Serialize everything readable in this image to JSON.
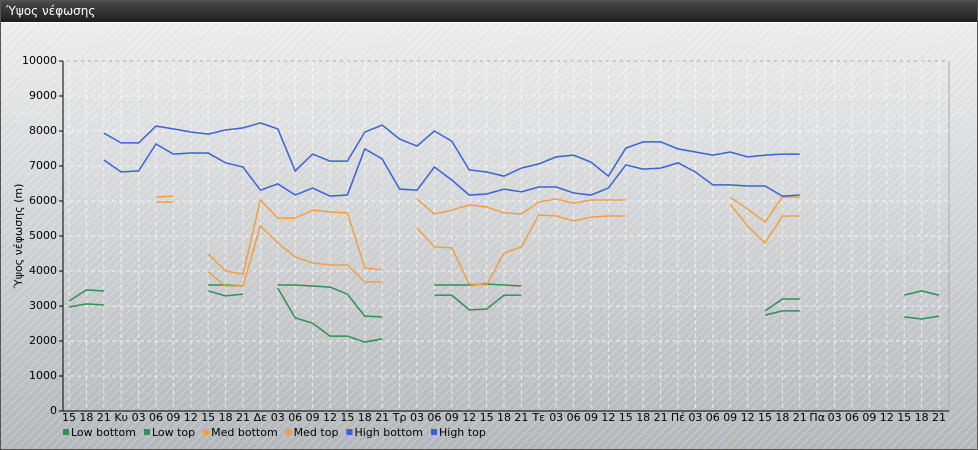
{
  "chart_data": {
    "type": "line",
    "title": "Ύψος νέφωσης",
    "y_label": "Ύψος νέφωσης (m)",
    "categories": [
      "15",
      "18",
      "21",
      "Κυ",
      "03",
      "06",
      "09",
      "12",
      "15",
      "18",
      "21",
      "Δε",
      "03",
      "06",
      "09",
      "12",
      "15",
      "18",
      "21",
      "Τρ",
      "03",
      "06",
      "09",
      "12",
      "15",
      "18",
      "21",
      "Τε",
      "03",
      "06",
      "09",
      "12",
      "15",
      "18",
      "21",
      "Πέ",
      "03",
      "06",
      "09",
      "12",
      "15",
      "18",
      "21",
      "Πα",
      "03",
      "06",
      "09",
      "12",
      "15",
      "18",
      "21"
    ],
    "ylim": [
      0,
      10000
    ],
    "yticks": [
      0,
      1000,
      2000,
      3000,
      4000,
      5000,
      6000,
      7000,
      8000,
      9000,
      10000
    ],
    "grid": true,
    "series": [
      {
        "name": "Low bottom",
        "color": "#2f8f55",
        "values": [
          2970,
          3060,
          3030,
          null,
          null,
          null,
          null,
          null,
          3430,
          3290,
          3340,
          null,
          3510,
          2660,
          2510,
          2140,
          2140,
          1970,
          2060,
          null,
          null,
          3310,
          3310,
          2890,
          2910,
          3310,
          3310,
          null,
          null,
          null,
          null,
          null,
          null,
          null,
          null,
          null,
          null,
          null,
          null,
          null,
          2740,
          2860,
          2860,
          null,
          null,
          null,
          null,
          null,
          2690,
          2630,
          2710
        ]
      },
      {
        "name": "Low top",
        "color": "#2f8f55",
        "values": [
          3140,
          3460,
          3430,
          null,
          null,
          null,
          null,
          null,
          3600,
          3600,
          3570,
          null,
          3600,
          3600,
          3570,
          3540,
          3340,
          2710,
          2690,
          null,
          null,
          3600,
          3600,
          3600,
          3630,
          3600,
          3570,
          null,
          null,
          null,
          null,
          null,
          null,
          null,
          null,
          null,
          null,
          null,
          null,
          null,
          2860,
          3200,
          3200,
          null,
          null,
          null,
          null,
          null,
          3310,
          3430,
          3310
        ]
      },
      {
        "name": "Med bottom",
        "color": "#f0a040",
        "values": [
          null,
          null,
          null,
          null,
          null,
          5970,
          5970,
          null,
          3970,
          3570,
          3570,
          5290,
          4800,
          4400,
          4230,
          4170,
          4170,
          3690,
          3690,
          null,
          5230,
          4690,
          4660,
          3630,
          3600,
          4510,
          4690,
          5600,
          5570,
          5430,
          5540,
          5570,
          5570,
          null,
          null,
          null,
          null,
          null,
          5910,
          5290,
          4800,
          5570,
          5570,
          null,
          null,
          null,
          null,
          null,
          null,
          null,
          null
        ]
      },
      {
        "name": "Med top",
        "color": "#f0a040",
        "values": [
          null,
          null,
          null,
          null,
          null,
          6110,
          6140,
          null,
          4490,
          4000,
          3910,
          6030,
          5510,
          5510,
          5740,
          5690,
          5660,
          4090,
          4030,
          null,
          6060,
          5630,
          5740,
          5890,
          5830,
          5660,
          5630,
          5970,
          6060,
          5940,
          6030,
          6030,
          6030,
          null,
          null,
          null,
          null,
          null,
          6110,
          5770,
          5400,
          6110,
          6110,
          null,
          null,
          null,
          null,
          null,
          null,
          null,
          null
        ]
      },
      {
        "name": "High bottom",
        "color": "#3a62d8",
        "values": [
          null,
          null,
          7170,
          6830,
          6860,
          7630,
          7340,
          7370,
          7370,
          7090,
          6970,
          6310,
          6490,
          6170,
          6370,
          6140,
          6170,
          7490,
          7200,
          6340,
          6310,
          6970,
          6600,
          6170,
          6200,
          6340,
          6260,
          6400,
          6400,
          6230,
          6170,
          6370,
          7030,
          6910,
          6940,
          7090,
          6830,
          6460,
          6460,
          6430,
          6430,
          6140,
          6170,
          null,
          null,
          null,
          null,
          null,
          null,
          null,
          null
        ]
      },
      {
        "name": "High top",
        "color": "#3a62d8",
        "values": [
          null,
          null,
          7940,
          7660,
          7660,
          8140,
          8060,
          7970,
          7910,
          8030,
          8090,
          8230,
          8060,
          6860,
          7340,
          7140,
          7140,
          7970,
          8170,
          7770,
          7570,
          8000,
          7710,
          6890,
          6830,
          6710,
          6940,
          7060,
          7260,
          7310,
          7110,
          6710,
          7510,
          7690,
          7690,
          7490,
          7400,
          7310,
          7400,
          7260,
          7310,
          7340,
          7340,
          null,
          null,
          null,
          null,
          null,
          null,
          null,
          null
        ]
      }
    ]
  }
}
